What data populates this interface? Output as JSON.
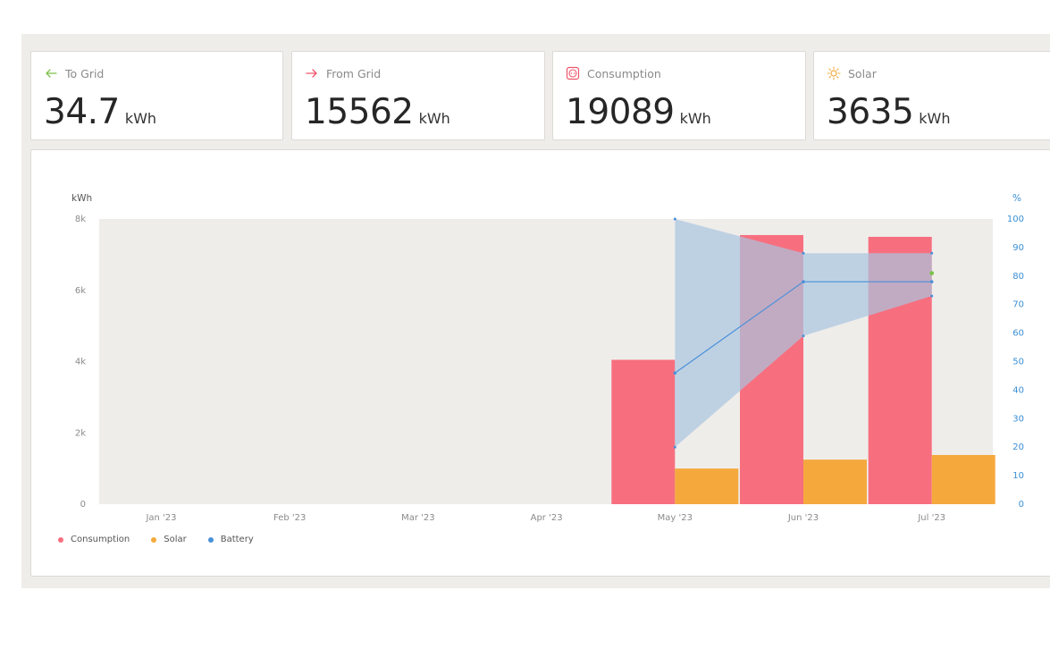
{
  "cards": [
    {
      "label": "To Grid",
      "value": "34.7",
      "unit": "kWh",
      "icon": "arrow-left-icon",
      "icon_color": "#7cc24a"
    },
    {
      "label": "From Grid",
      "value": "15562",
      "unit": "kWh",
      "icon": "arrow-right-icon",
      "icon_color": "#f0566b"
    },
    {
      "label": "Consumption",
      "value": "19089",
      "unit": "kWh",
      "icon": "socket-icon",
      "icon_color": "#f0566b"
    },
    {
      "label": "Solar",
      "value": "3635",
      "unit": "kWh",
      "icon": "sun-icon",
      "icon_color": "#f2a93b"
    }
  ],
  "chart_data": {
    "type": "bar",
    "categories": [
      "Jan '23",
      "Feb '23",
      "Mar '23",
      "Apr '23",
      "May '23",
      "Jun '23",
      "Jul '23"
    ],
    "ylabel": "kWh",
    "ylim": [
      0,
      8000
    ],
    "yticks": [
      {
        "value": 0,
        "label": "0"
      },
      {
        "value": 2000,
        "label": "2k"
      },
      {
        "value": 4000,
        "label": "4k"
      },
      {
        "value": 6000,
        "label": "6k"
      },
      {
        "value": 8000,
        "label": "8k"
      }
    ],
    "y2label": "%",
    "y2lim": [
      0,
      100
    ],
    "y2ticks": [
      0,
      10,
      20,
      30,
      40,
      50,
      60,
      70,
      80,
      90,
      100
    ],
    "grid": false,
    "legend_position": "bottom-left",
    "series": [
      {
        "name": "Consumption",
        "type": "bar",
        "color": "#f76f7f",
        "values": [
          0,
          0,
          0,
          0,
          4050,
          7550,
          7500
        ]
      },
      {
        "name": "Solar",
        "type": "bar",
        "color": "#f5a93d",
        "values": [
          0,
          0,
          0,
          0,
          1000,
          1250,
          1380
        ]
      },
      {
        "name": "Battery",
        "type": "line",
        "axis": "y2",
        "color": "#4a90d9",
        "band_color": "#a9c5e0",
        "x": [
          "May '23",
          "Jun '23",
          "Jul '23"
        ],
        "mean": [
          46,
          78,
          78
        ],
        "max": [
          100,
          88,
          88
        ],
        "min": [
          20,
          59,
          73
        ]
      }
    ],
    "markers": [
      {
        "x": "Jul '23",
        "y2": 81,
        "color": "#7cc24a"
      }
    ]
  }
}
